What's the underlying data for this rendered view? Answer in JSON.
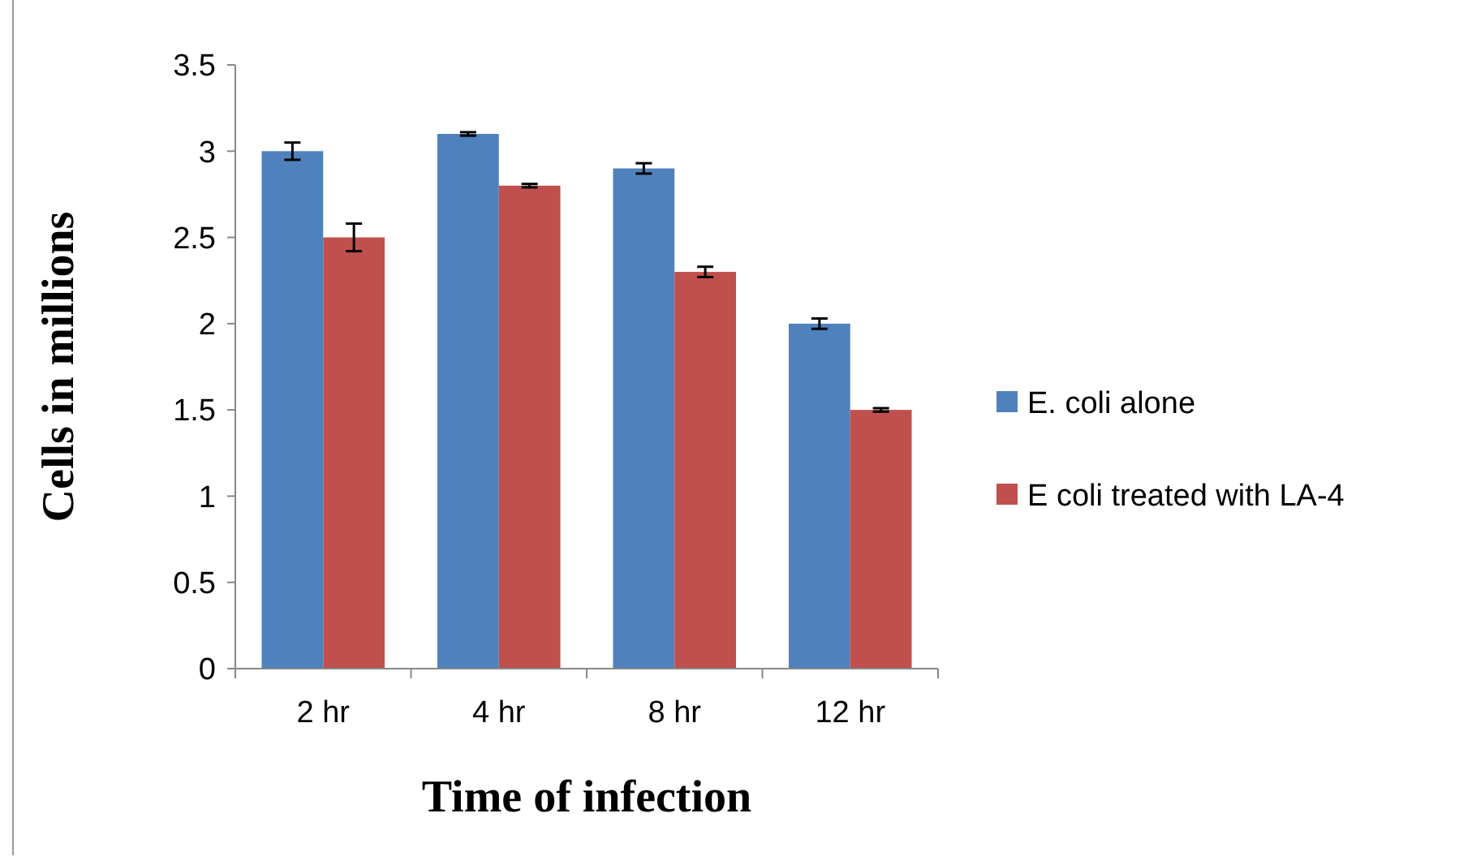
{
  "chart_data": {
    "type": "bar",
    "xlabel": "Time of infection",
    "ylabel": "Cells in millions",
    "categories": [
      "2 hr",
      "4 hr",
      "8 hr",
      "12 hr"
    ],
    "series": [
      {
        "name": "E. coli alone",
        "color": "#4f81bd",
        "values": [
          3.0,
          3.1,
          2.9,
          2.0
        ],
        "errors": [
          0.05,
          0.01,
          0.03,
          0.03
        ]
      },
      {
        "name": "E coli treated with LA-4",
        "color": "#c0504d",
        "values": [
          2.5,
          2.8,
          2.3,
          1.5
        ],
        "errors": [
          0.08,
          0.01,
          0.03,
          0.01
        ]
      }
    ],
    "ylim": [
      0,
      3.5
    ],
    "yticks": [
      0,
      0.5,
      1,
      1.5,
      2,
      2.5,
      3,
      3.5
    ],
    "grid": false,
    "legend": "right"
  }
}
